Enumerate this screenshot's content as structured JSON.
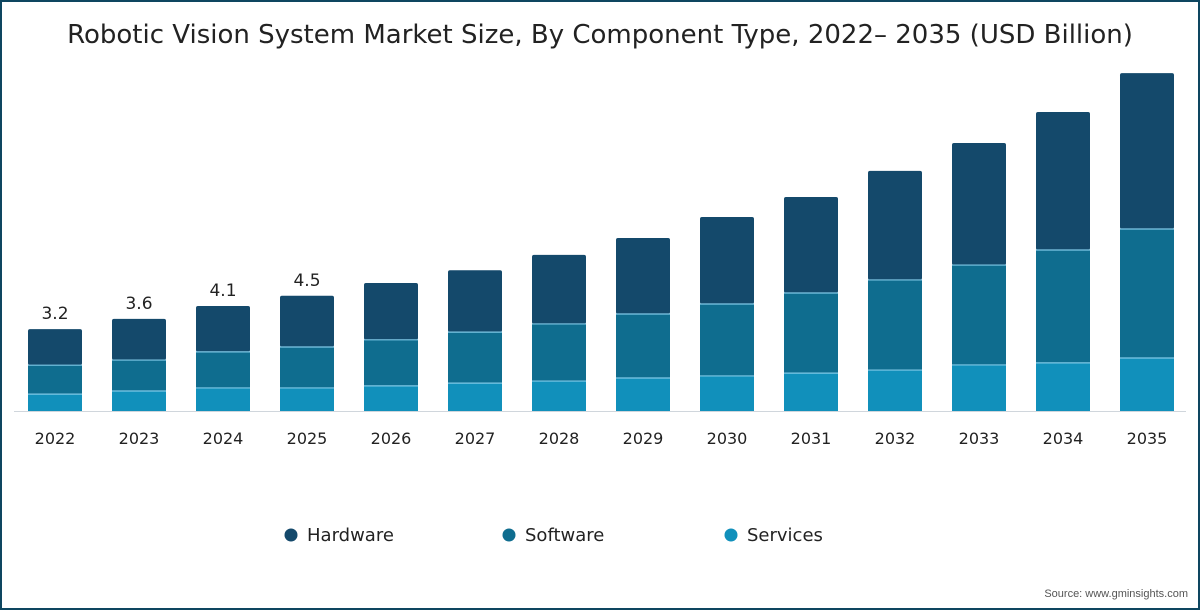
{
  "chart_data": {
    "type": "bar",
    "stacked": true,
    "title": "Robotic Vision System Market Size, By Component Type, 2022– 2035 (USD Billion)",
    "xlabel": "",
    "ylabel": "",
    "categories": [
      "2022",
      "2023",
      "2024",
      "2025",
      "2026",
      "2027",
      "2028",
      "2029",
      "2030",
      "2031",
      "2032",
      "2033",
      "2034",
      "2035"
    ],
    "series": [
      {
        "name": "Services",
        "color": "#1190bb",
        "values": [
          0.66,
          0.78,
          0.9,
          0.9,
          0.98,
          1.09,
          1.17,
          1.29,
          1.37,
          1.48,
          1.6,
          1.8,
          1.88,
          2.07
        ]
      },
      {
        "name": "Software",
        "color": "#0f6d8f",
        "values": [
          1.13,
          1.21,
          1.41,
          1.6,
          1.8,
          1.99,
          2.23,
          2.5,
          2.81,
          3.13,
          3.52,
          3.9,
          4.41,
          5.04
        ]
      },
      {
        "name": "Hardware",
        "color": "#14496b",
        "values": [
          1.41,
          1.61,
          1.79,
          2.0,
          2.22,
          2.42,
          2.7,
          2.97,
          3.4,
          3.75,
          4.26,
          4.77,
          5.39,
          6.09
        ]
      }
    ],
    "data_labels": [
      "3.2",
      "3.6",
      "4.1",
      "4.5",
      "",
      "",
      "",
      "",
      "",
      "",
      "",
      "",
      "",
      ""
    ],
    "legend_order": [
      "Hardware",
      "Software",
      "Services"
    ],
    "legend_placement": "bottom",
    "ylim": [
      0,
      13.5
    ],
    "grid": false
  },
  "source": "Source: www.gminsights.com"
}
